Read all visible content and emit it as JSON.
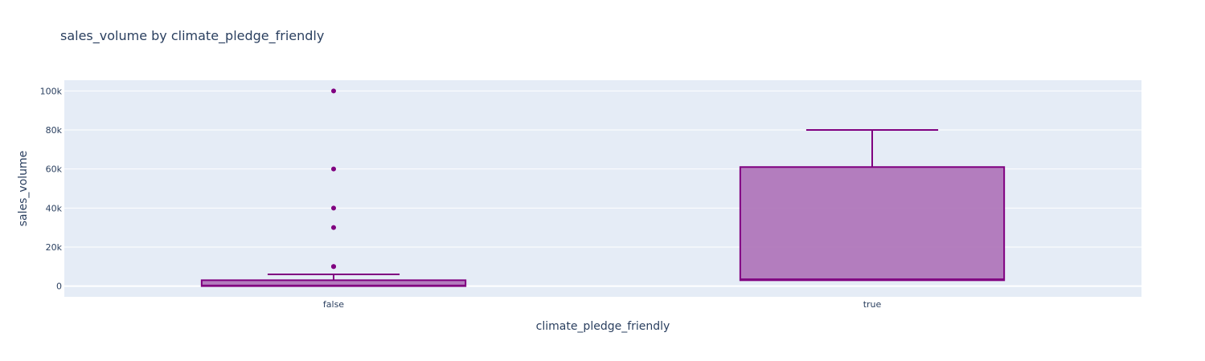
{
  "chart_data": {
    "type": "box",
    "title": "sales_volume by climate_pledge_friendly",
    "xlabel": "climate_pledge_friendly",
    "ylabel": "sales_volume",
    "ylim": [
      -5500,
      105500
    ],
    "yticks": [
      0,
      20000,
      40000,
      60000,
      80000,
      100000
    ],
    "ytick_labels": [
      "0",
      "20k",
      "40k",
      "60k",
      "80k",
      "100k"
    ],
    "categories": [
      "false",
      "true"
    ],
    "grid": true,
    "color": "#800080",
    "fill_color": "#b077bb",
    "plot_bg": "#e5ecf6",
    "boxes": [
      {
        "category": "false",
        "min": 0,
        "q1": 0,
        "median": 300,
        "q3": 3000,
        "upper_fence": 6000,
        "outliers": [
          10000,
          10000,
          30000,
          40000,
          60000,
          100000
        ]
      },
      {
        "category": "true",
        "min": 3000,
        "q1": 3000,
        "median": 3500,
        "q3": 61000,
        "upper_fence": 80000,
        "outliers": []
      }
    ]
  }
}
